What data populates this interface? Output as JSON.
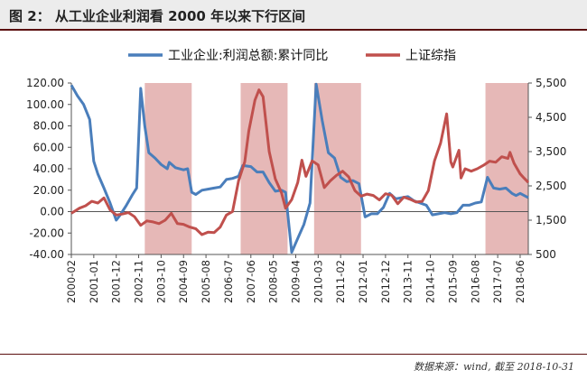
{
  "header": {
    "title": "图 2： 从工业企业利润看 2000 年以来下行区间"
  },
  "footer": {
    "source": "数据来源：wind, 截至 2018-10-31"
  },
  "colors": {
    "profit": "#4a7ebb",
    "index": "#c0504d",
    "shade": "#e6b8b7"
  },
  "chart_data": {
    "type": "line",
    "title": "",
    "legend_position": "top",
    "x_tick_labels": [
      "2000-02",
      "2001-01",
      "2001-12",
      "2002-11",
      "2003-10",
      "2004-09",
      "2005-08",
      "2006-07",
      "2007-06",
      "2008-05",
      "2009-04",
      "2010-03",
      "2011-02",
      "2012-01",
      "2012-12",
      "2013-11",
      "2014-10",
      "2015-09",
      "2016-08",
      "2017-07",
      "2018-06"
    ],
    "left_axis": {
      "min": -40,
      "max": 120,
      "ticks": [
        "-40.00",
        "-20.00",
        "0.00",
        "20.00",
        "40.00",
        "60.00",
        "80.00",
        "100.00",
        "120.00"
      ]
    },
    "right_axis": {
      "min": 500,
      "max": 5500,
      "ticks": [
        "500",
        "1,500",
        "2,500",
        "3,500",
        "4,500",
        "5,500"
      ]
    },
    "shaded_periods": [
      [
        "2003-02",
        "2005-01"
      ],
      [
        "2007-01",
        "2008-12"
      ],
      [
        "2010-01",
        "2011-12"
      ],
      [
        "2017-01",
        "2018-10"
      ]
    ],
    "series": [
      {
        "name": "工业企业:利润总额:累计同比",
        "axis": "left",
        "points": [
          [
            "2000-02",
            118
          ],
          [
            "2000-05",
            108
          ],
          [
            "2000-08",
            100
          ],
          [
            "2000-11",
            86
          ],
          [
            "2001-01",
            47
          ],
          [
            "2001-03",
            35
          ],
          [
            "2001-06",
            22
          ],
          [
            "2001-09",
            8
          ],
          [
            "2001-12",
            -8
          ],
          [
            "2002-02",
            -3
          ],
          [
            "2002-05",
            6
          ],
          [
            "2002-08",
            16
          ],
          [
            "2002-10",
            22
          ],
          [
            "2002-12",
            115
          ],
          [
            "2003-02",
            80
          ],
          [
            "2003-04",
            55
          ],
          [
            "2003-07",
            50
          ],
          [
            "2003-10",
            44
          ],
          [
            "2004-01",
            40
          ],
          [
            "2004-02",
            46
          ],
          [
            "2004-05",
            41
          ],
          [
            "2004-09",
            39
          ],
          [
            "2004-11",
            40
          ],
          [
            "2005-01",
            18
          ],
          [
            "2005-03",
            16
          ],
          [
            "2005-06",
            20
          ],
          [
            "2005-09",
            21
          ],
          [
            "2005-12",
            22
          ],
          [
            "2006-03",
            23
          ],
          [
            "2006-06",
            30
          ],
          [
            "2006-09",
            31
          ],
          [
            "2006-12",
            33
          ],
          [
            "2007-02",
            43
          ],
          [
            "2007-06",
            42
          ],
          [
            "2007-09",
            37
          ],
          [
            "2007-12",
            37
          ],
          [
            "2008-03",
            27
          ],
          [
            "2008-06",
            19
          ],
          [
            "2008-09",
            20
          ],
          [
            "2008-11",
            18
          ],
          [
            "2009-02",
            -38
          ],
          [
            "2009-05",
            -25
          ],
          [
            "2009-08",
            -12
          ],
          [
            "2009-11",
            8
          ],
          [
            "2010-02",
            119
          ],
          [
            "2010-05",
            85
          ],
          [
            "2010-08",
            55
          ],
          [
            "2010-11",
            50
          ],
          [
            "2011-02",
            32
          ],
          [
            "2011-05",
            28
          ],
          [
            "2011-08",
            29
          ],
          [
            "2011-11",
            26
          ],
          [
            "2012-02",
            -5
          ],
          [
            "2012-05",
            -2
          ],
          [
            "2012-08",
            -2
          ],
          [
            "2012-11",
            4
          ],
          [
            "2013-02",
            17
          ],
          [
            "2013-05",
            12
          ],
          [
            "2013-08",
            13
          ],
          [
            "2013-11",
            14
          ],
          [
            "2014-02",
            10
          ],
          [
            "2014-05",
            8
          ],
          [
            "2014-08",
            6
          ],
          [
            "2014-11",
            -3
          ],
          [
            "2015-02",
            -2
          ],
          [
            "2015-05",
            -1
          ],
          [
            "2015-08",
            -2
          ],
          [
            "2015-11",
            -1
          ],
          [
            "2016-02",
            6
          ],
          [
            "2016-05",
            6
          ],
          [
            "2016-08",
            8
          ],
          [
            "2016-11",
            9
          ],
          [
            "2017-02",
            32
          ],
          [
            "2017-05",
            22
          ],
          [
            "2017-08",
            21
          ],
          [
            "2017-11",
            22
          ],
          [
            "2018-02",
            17
          ],
          [
            "2018-04",
            15
          ],
          [
            "2018-06",
            17
          ],
          [
            "2018-08",
            15
          ],
          [
            "2018-10",
            13
          ]
        ]
      },
      {
        "name": "上证综指",
        "axis": "right",
        "points": [
          [
            "2000-02",
            1700
          ],
          [
            "2000-06",
            1850
          ],
          [
            "2000-09",
            1920
          ],
          [
            "2000-12",
            2050
          ],
          [
            "2001-03",
            2000
          ],
          [
            "2001-06",
            2150
          ],
          [
            "2001-09",
            1800
          ],
          [
            "2001-12",
            1650
          ],
          [
            "2002-03",
            1680
          ],
          [
            "2002-06",
            1720
          ],
          [
            "2002-09",
            1600
          ],
          [
            "2002-12",
            1350
          ],
          [
            "2003-03",
            1480
          ],
          [
            "2003-06",
            1450
          ],
          [
            "2003-09",
            1400
          ],
          [
            "2003-12",
            1500
          ],
          [
            "2004-03",
            1700
          ],
          [
            "2004-06",
            1400
          ],
          [
            "2004-09",
            1380
          ],
          [
            "2004-12",
            1300
          ],
          [
            "2005-03",
            1250
          ],
          [
            "2005-06",
            1080
          ],
          [
            "2005-09",
            1150
          ],
          [
            "2005-12",
            1140
          ],
          [
            "2006-03",
            1300
          ],
          [
            "2006-06",
            1650
          ],
          [
            "2006-09",
            1750
          ],
          [
            "2006-12",
            2650
          ],
          [
            "2007-03",
            3200
          ],
          [
            "2007-05",
            4100
          ],
          [
            "2007-08",
            5000
          ],
          [
            "2007-10",
            5300
          ],
          [
            "2007-12",
            5100
          ],
          [
            "2008-03",
            3500
          ],
          [
            "2008-06",
            2700
          ],
          [
            "2008-09",
            2300
          ],
          [
            "2008-11",
            1850
          ],
          [
            "2009-02",
            2100
          ],
          [
            "2009-05",
            2600
          ],
          [
            "2009-07",
            3250
          ],
          [
            "2009-09",
            2780
          ],
          [
            "2009-12",
            3230
          ],
          [
            "2010-03",
            3110
          ],
          [
            "2010-06",
            2450
          ],
          [
            "2010-09",
            2650
          ],
          [
            "2010-12",
            2810
          ],
          [
            "2011-03",
            2930
          ],
          [
            "2011-06",
            2760
          ],
          [
            "2011-09",
            2360
          ],
          [
            "2011-12",
            2200
          ],
          [
            "2012-03",
            2260
          ],
          [
            "2012-06",
            2220
          ],
          [
            "2012-09",
            2090
          ],
          [
            "2012-12",
            2270
          ],
          [
            "2013-03",
            2230
          ],
          [
            "2013-06",
            1980
          ],
          [
            "2013-09",
            2170
          ],
          [
            "2013-12",
            2110
          ],
          [
            "2014-03",
            2030
          ],
          [
            "2014-06",
            2050
          ],
          [
            "2014-09",
            2360
          ],
          [
            "2014-12",
            3230
          ],
          [
            "2015-03",
            3750
          ],
          [
            "2015-06",
            4600
          ],
          [
            "2015-08",
            3200
          ],
          [
            "2015-09",
            3050
          ],
          [
            "2015-12",
            3540
          ],
          [
            "2016-01",
            2730
          ],
          [
            "2016-03",
            3000
          ],
          [
            "2016-06",
            2930
          ],
          [
            "2016-09",
            3000
          ],
          [
            "2016-12",
            3100
          ],
          [
            "2017-03",
            3220
          ],
          [
            "2017-06",
            3190
          ],
          [
            "2017-09",
            3350
          ],
          [
            "2017-12",
            3300
          ],
          [
            "2018-01",
            3480
          ],
          [
            "2018-03",
            3160
          ],
          [
            "2018-06",
            2850
          ],
          [
            "2018-08",
            2720
          ],
          [
            "2018-10",
            2600
          ]
        ]
      }
    ]
  }
}
